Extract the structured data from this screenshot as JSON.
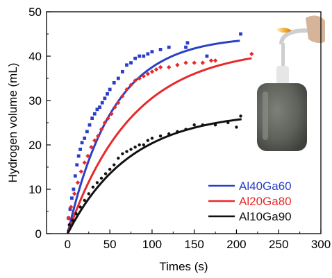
{
  "chart_data": {
    "type": "scatter",
    "xlabel": "Times (s)",
    "ylabel": "Hydrogen volume (mL)",
    "xlim": [
      -25,
      300
    ],
    "ylim": [
      0,
      50
    ],
    "xticks": [
      "0",
      "50",
      "100",
      "150",
      "200",
      "250",
      "300"
    ],
    "yticks": [
      "0",
      "10",
      "20",
      "30",
      "40",
      "50"
    ],
    "legend_position": "lower-right",
    "series": [
      {
        "name": "Al40Ga60",
        "color": "#2a3fc6",
        "marker": "square",
        "fit_asymptote": 44.5,
        "fit_rate": 0.0185,
        "fit_x_end": 205,
        "points": [
          [
            1,
            3.5
          ],
          [
            3,
            5.5
          ],
          [
            5,
            8
          ],
          [
            7,
            10
          ],
          [
            9,
            13
          ],
          [
            11,
            15.5
          ],
          [
            13,
            17.5
          ],
          [
            15,
            19
          ],
          [
            17,
            20.5
          ],
          [
            20,
            21.5
          ],
          [
            23,
            23
          ],
          [
            26,
            24.5
          ],
          [
            29,
            26
          ],
          [
            32,
            27
          ],
          [
            35,
            28
          ],
          [
            38,
            28.5
          ],
          [
            41,
            29.5
          ],
          [
            44,
            30.5
          ],
          [
            47,
            31.5
          ],
          [
            50,
            32.5
          ],
          [
            55,
            34
          ],
          [
            60,
            35
          ],
          [
            65,
            36.5
          ],
          [
            70,
            38
          ],
          [
            75,
            38.5
          ],
          [
            80,
            39.5
          ],
          [
            85,
            40
          ],
          [
            90,
            40
          ],
          [
            95,
            40.5
          ],
          [
            100,
            41
          ],
          [
            110,
            41.5
          ],
          [
            120,
            42
          ],
          [
            140,
            42
          ],
          [
            142,
            43
          ],
          [
            165,
            40
          ],
          [
            205,
            45
          ]
        ]
      },
      {
        "name": "Al20Ga80",
        "color": "#e8292b",
        "marker": "diamond",
        "fit_asymptote": 42,
        "fit_rate": 0.013,
        "fit_x_end": 218,
        "points": [
          [
            1,
            3.5
          ],
          [
            4,
            6
          ],
          [
            8,
            9
          ],
          [
            12,
            11.5
          ],
          [
            16,
            14
          ],
          [
            20,
            16
          ],
          [
            24,
            17.5
          ],
          [
            28,
            19.5
          ],
          [
            32,
            21
          ],
          [
            36,
            22
          ],
          [
            40,
            23.5
          ],
          [
            44,
            25
          ],
          [
            48,
            26
          ],
          [
            52,
            27
          ],
          [
            56,
            28.5
          ],
          [
            60,
            29.5
          ],
          [
            65,
            31
          ],
          [
            70,
            32.5
          ],
          [
            75,
            33.5
          ],
          [
            80,
            34.5
          ],
          [
            85,
            35
          ],
          [
            90,
            35.5
          ],
          [
            95,
            36
          ],
          [
            100,
            36.5
          ],
          [
            105,
            37
          ],
          [
            110,
            37.5
          ],
          [
            120,
            37.5
          ],
          [
            130,
            38
          ],
          [
            140,
            38.5
          ],
          [
            150,
            38.5
          ],
          [
            160,
            38.5
          ],
          [
            170,
            39
          ],
          [
            175,
            39
          ],
          [
            218,
            40.5
          ]
        ]
      },
      {
        "name": "Al10Ga90",
        "color": "#111111",
        "marker": "circle",
        "fit_asymptote": 27.5,
        "fit_rate": 0.0135,
        "fit_x_end": 206,
        "points": [
          [
            2,
            2
          ],
          [
            6,
            3
          ],
          [
            10,
            4.5
          ],
          [
            15,
            6
          ],
          [
            20,
            7.5
          ],
          [
            25,
            9
          ],
          [
            30,
            10.5
          ],
          [
            35,
            11.5
          ],
          [
            40,
            12.5
          ],
          [
            45,
            13.5
          ],
          [
            50,
            14.5
          ],
          [
            55,
            15.5
          ],
          [
            60,
            17
          ],
          [
            65,
            18
          ],
          [
            70,
            18.5
          ],
          [
            75,
            19
          ],
          [
            80,
            19.5
          ],
          [
            85,
            20
          ],
          [
            90,
            20
          ],
          [
            95,
            21
          ],
          [
            100,
            21.5
          ],
          [
            110,
            22
          ],
          [
            120,
            22.5
          ],
          [
            130,
            23
          ],
          [
            140,
            23.5
          ],
          [
            150,
            24.5
          ],
          [
            160,
            24.5
          ],
          [
            175,
            24.5
          ],
          [
            190,
            25
          ],
          [
            200,
            24
          ],
          [
            205,
            26.5
          ]
        ]
      }
    ]
  },
  "inset_photo": {
    "bottle_color": "#5f625b",
    "flame_color": "#f3b23a"
  }
}
